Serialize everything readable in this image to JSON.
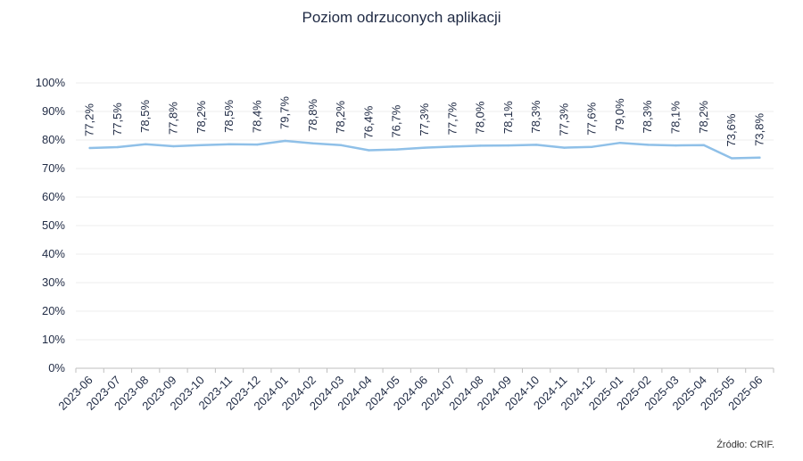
{
  "title": "Poziom odrzuconych aplikacji",
  "source": "Źródło: CRIF.",
  "colors": {
    "line": "#8fc0e8",
    "grid": "#ececec",
    "axis": "#bfbfbf",
    "text": "#1f2a44"
  },
  "chart_data": {
    "type": "line",
    "title": "Poziom odrzuconych aplikacji",
    "categories": [
      "2023-06",
      "2023-07",
      "2023-08",
      "2023-09",
      "2023-10",
      "2023-11",
      "2023-12",
      "2024-01",
      "2024-02",
      "2024-03",
      "2024-04",
      "2024-05",
      "2024-06",
      "2024-07",
      "2024-08",
      "2024-09",
      "2024-10",
      "2024-11",
      "2024-12",
      "2025-01",
      "2025-02",
      "2025-03",
      "2025-04",
      "2025-05",
      "2025-06"
    ],
    "values": [
      77.2,
      77.5,
      78.5,
      77.8,
      78.2,
      78.5,
      78.4,
      79.7,
      78.8,
      78.2,
      76.4,
      76.7,
      77.3,
      77.7,
      78.0,
      78.1,
      78.3,
      77.3,
      77.6,
      79.0,
      78.3,
      78.1,
      78.2,
      73.6,
      73.8
    ],
    "data_labels": [
      "77,2%",
      "77,5%",
      "78,5%",
      "77,8%",
      "78,2%",
      "78,5%",
      "78,4%",
      "79,7%",
      "78,8%",
      "78,2%",
      "76,4%",
      "76,7%",
      "77,3%",
      "77,7%",
      "78,0%",
      "78,1%",
      "78,3%",
      "77,3%",
      "77,6%",
      "79,0%",
      "78,3%",
      "78,1%",
      "78,2%",
      "73,6%",
      "73,8%"
    ],
    "y_ticks": [
      "0%",
      "10%",
      "20%",
      "30%",
      "40%",
      "50%",
      "60%",
      "70%",
      "80%",
      "90%",
      "100%"
    ],
    "ylim": [
      0,
      100
    ],
    "grid": true,
    "legend": "none"
  }
}
